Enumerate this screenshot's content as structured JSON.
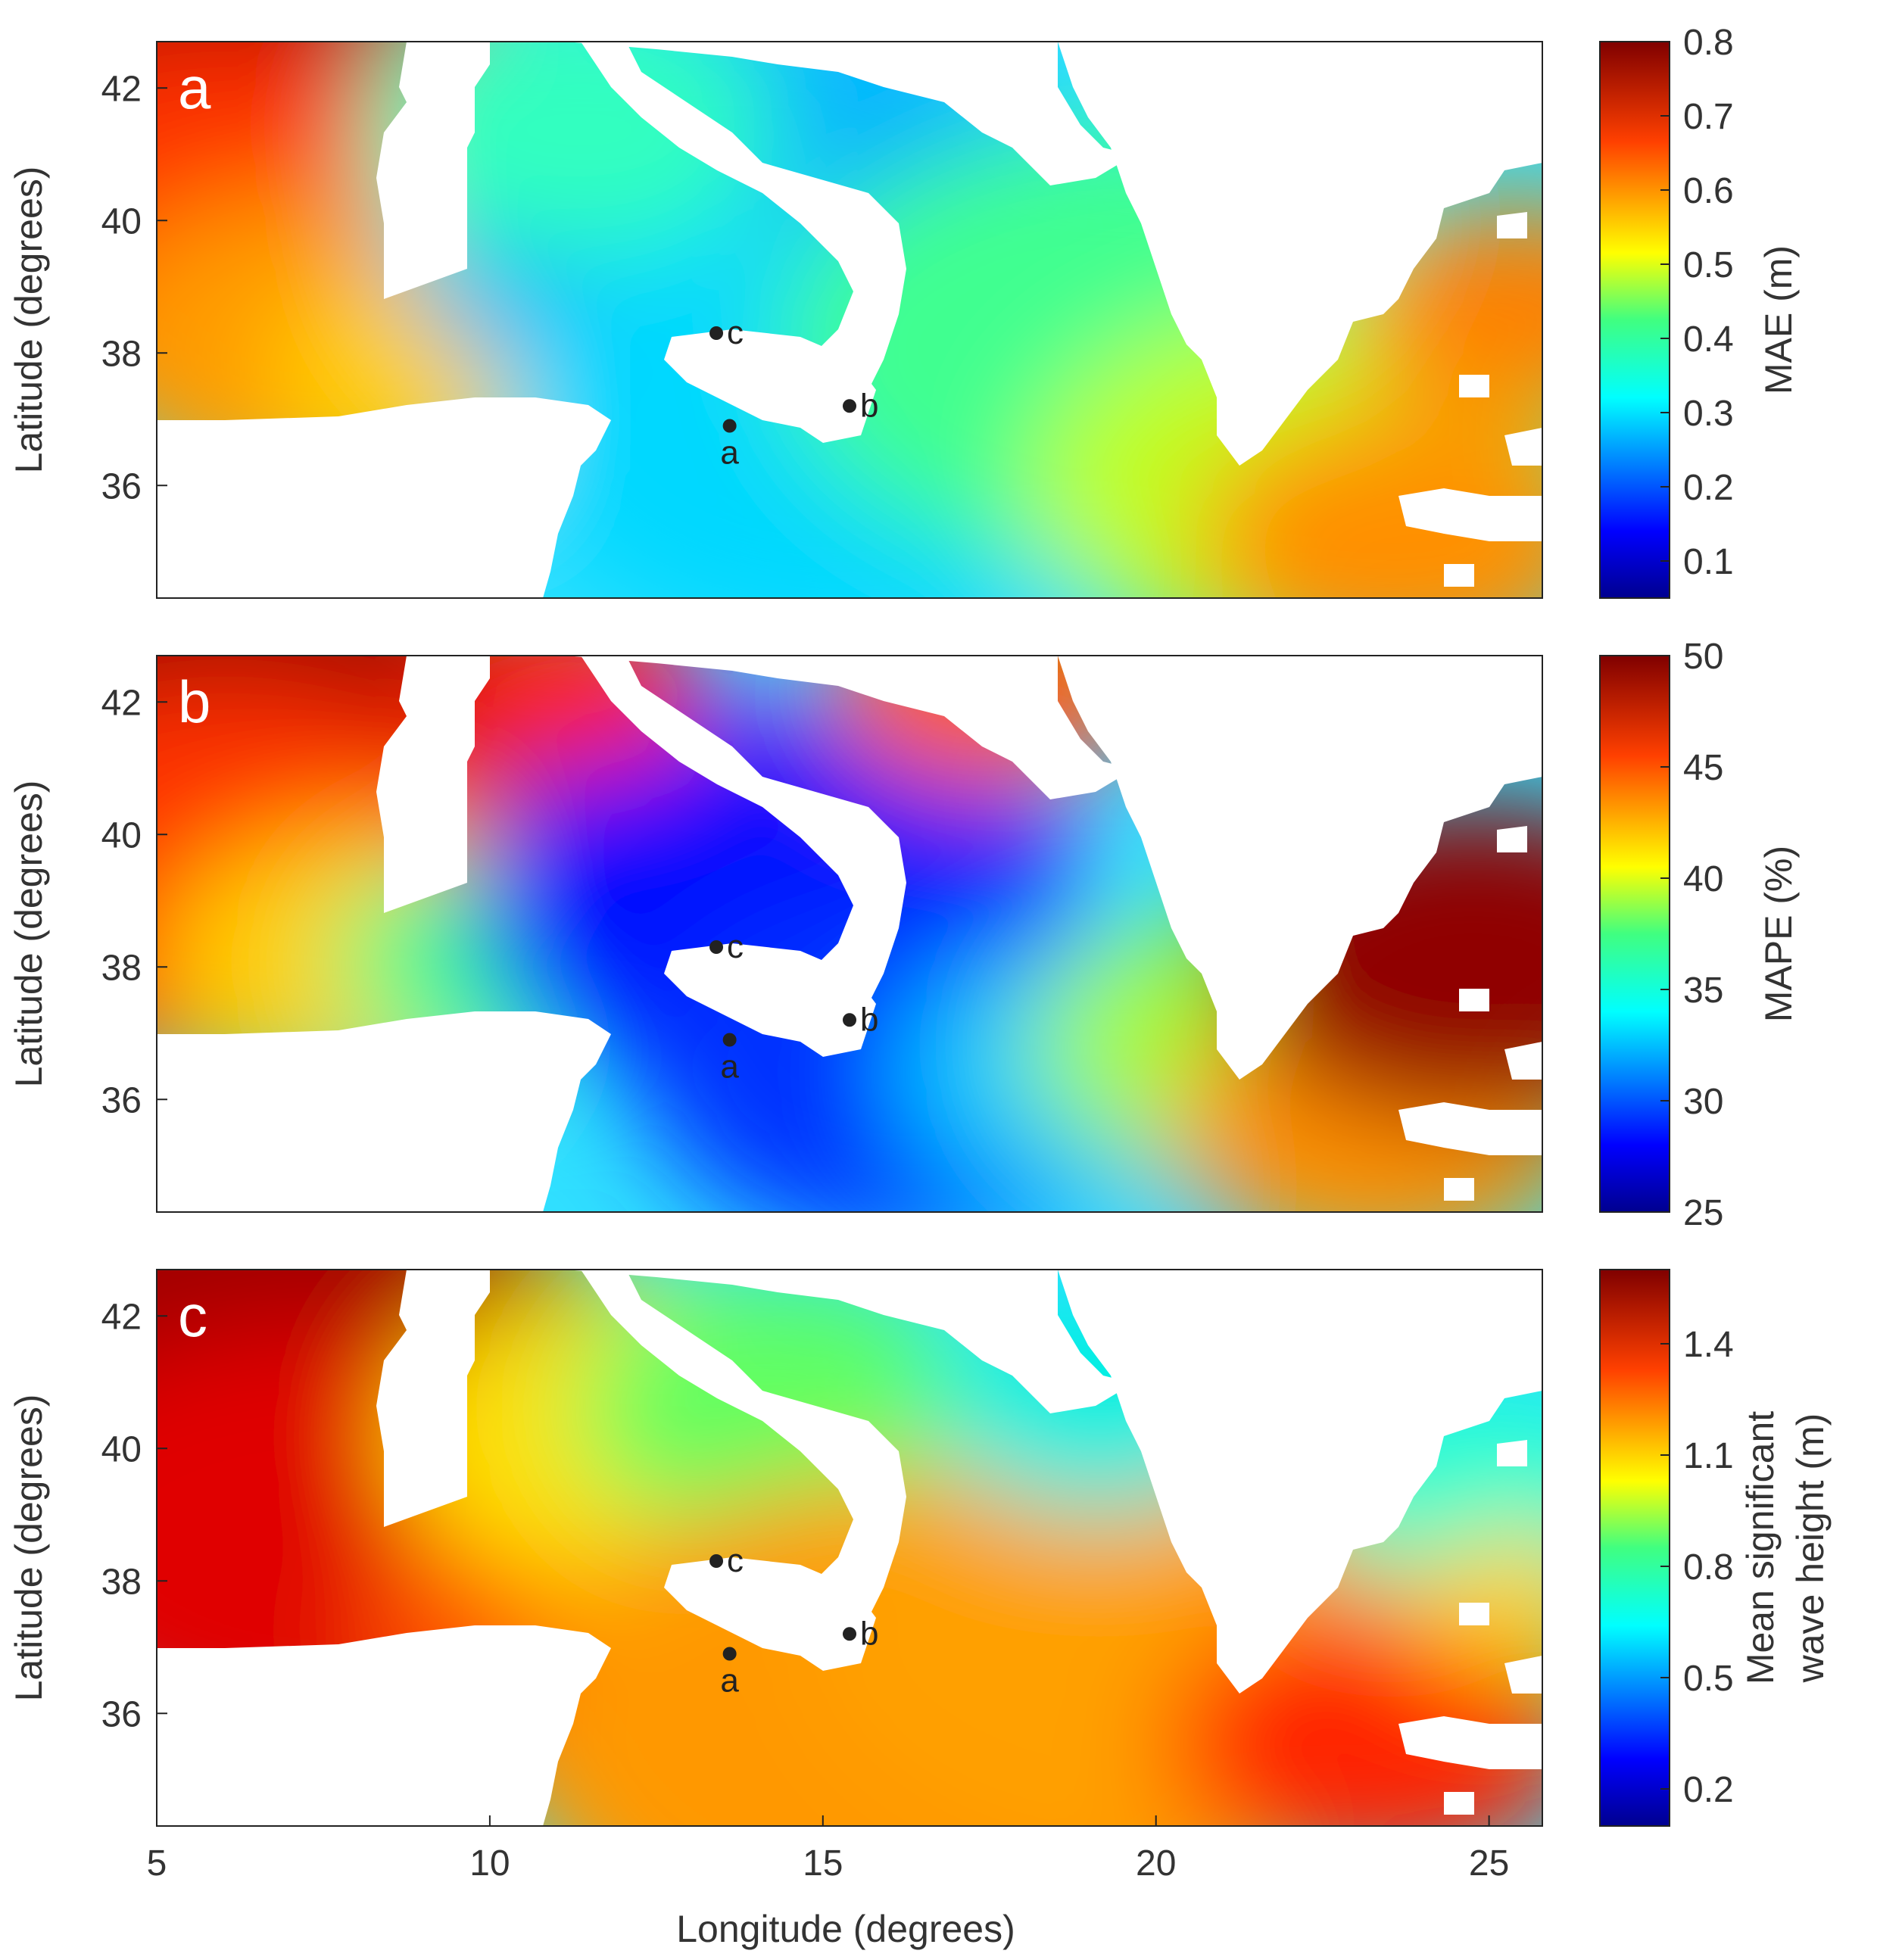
{
  "figure": {
    "xlabel": "Longitude (degrees)",
    "ylabel": "Latitude (degrees)"
  },
  "chart_data": [
    {
      "type": "heatmap",
      "panel": "a",
      "xlabel": "",
      "ylabel": "Latitude (degrees)",
      "xlim": [
        5,
        25.8
      ],
      "ylim": [
        34.3,
        42.7
      ],
      "yticks": [
        36,
        38,
        40,
        42
      ],
      "xticks": [],
      "colorbar": {
        "label": "MAE (m)",
        "ticks": [
          0.1,
          0.2,
          0.3,
          0.4,
          0.5,
          0.6,
          0.7,
          0.8
        ],
        "range": [
          0.05,
          0.8
        ]
      },
      "colormap": [
        "#00008f",
        "#0000ff",
        "#00a0ff",
        "#00ffff",
        "#40ff80",
        "#c0ff00",
        "#ffff00",
        "#ff9000",
        "#ff0000",
        "#800000"
      ],
      "markers": [
        {
          "label": "c",
          "lon": 13.4,
          "lat": 38.3
        },
        {
          "label": "a",
          "lon": 13.6,
          "lat": 36.9
        },
        {
          "label": "b",
          "lon": 15.4,
          "lat": 37.2
        }
      ]
    },
    {
      "type": "heatmap",
      "panel": "b",
      "xlabel": "",
      "ylabel": "Latitude (degrees)",
      "xlim": [
        5,
        25.8
      ],
      "ylim": [
        34.3,
        42.7
      ],
      "yticks": [
        36,
        38,
        40,
        42
      ],
      "xticks": [],
      "colorbar": {
        "label": "MAPE (%)",
        "ticks": [
          25,
          30,
          35,
          40,
          45,
          50
        ],
        "range": [
          25,
          50
        ]
      },
      "colormap": [
        "#00008f",
        "#0000ff",
        "#00a0ff",
        "#00ffff",
        "#40ff80",
        "#c0ff00",
        "#ffff00",
        "#ff9000",
        "#ff0000",
        "#800000"
      ],
      "markers": [
        {
          "label": "c",
          "lon": 13.4,
          "lat": 38.3
        },
        {
          "label": "a",
          "lon": 13.6,
          "lat": 36.9
        },
        {
          "label": "b",
          "lon": 15.4,
          "lat": 37.2
        }
      ]
    },
    {
      "type": "heatmap",
      "panel": "c",
      "xlabel": "Longitude (degrees)",
      "ylabel": "Latitude (degrees)",
      "xlim": [
        5,
        25.8
      ],
      "ylim": [
        34.3,
        42.7
      ],
      "yticks": [
        36,
        38,
        40,
        42
      ],
      "xticks": [
        5,
        10,
        15,
        20,
        25
      ],
      "colorbar": {
        "label": "Mean significant wave height (m)",
        "label_lines": [
          "Mean significant",
          "wave height (m)"
        ],
        "ticks": [
          0.2,
          0.5,
          0.8,
          1.1,
          1.4
        ],
        "range": [
          0.1,
          1.6
        ]
      },
      "colormap": [
        "#00008f",
        "#0000ff",
        "#00a0ff",
        "#00ffff",
        "#40ff80",
        "#c0ff00",
        "#ffff00",
        "#ff9000",
        "#ff0000",
        "#800000"
      ],
      "markers": [
        {
          "label": "c",
          "lon": 13.4,
          "lat": 38.3
        },
        {
          "label": "a",
          "lon": 13.6,
          "lat": 36.9
        },
        {
          "label": "b",
          "lon": 15.4,
          "lat": 37.2
        }
      ]
    }
  ]
}
